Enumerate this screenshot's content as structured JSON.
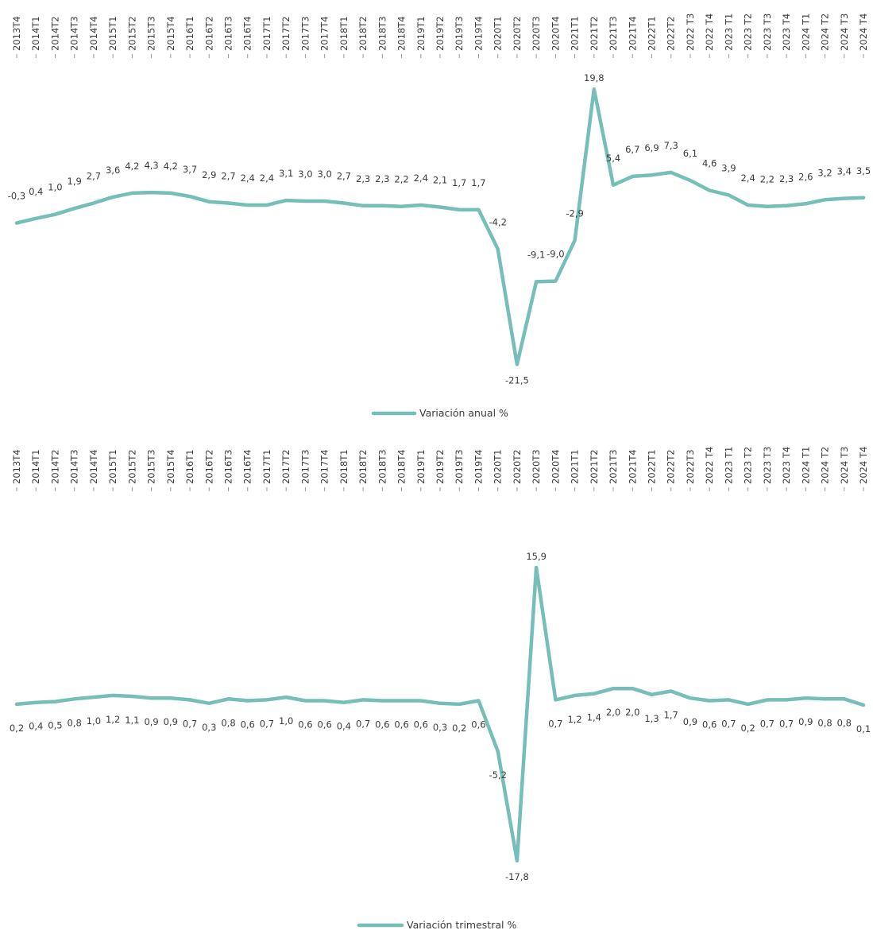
{
  "chart_data": [
    {
      "type": "line",
      "categories": [
        "2013T4",
        "2014T1",
        "2014T2",
        "2014T3",
        "2014T4",
        "2015T1",
        "2015T2",
        "2015T3",
        "2015T4",
        "2016T1",
        "2016T2",
        "2016T3",
        "2016T4",
        "2017T1",
        "2017T2",
        "2017T3",
        "2017T4",
        "2018T1",
        "2018T2",
        "2018T3",
        "2018T4",
        "2019T1",
        "2019T2",
        "2019T3",
        "2019T4",
        "2020T1",
        "2020T2",
        "2020T3",
        "2020T4",
        "2021T1",
        "2021T2",
        "2021T3",
        "2021T4",
        "2022T1",
        "2022T2",
        "2022 T3",
        "2022 T4",
        "2023 T1",
        "2023 T2",
        "2023 T3",
        "2023 T4",
        "2024 T1",
        "2024 T2",
        "2024 T3",
        "2024 T4"
      ],
      "series": [
        {
          "name": "Variación anual %",
          "values": [
            -0.3,
            0.4,
            1.0,
            1.9,
            2.7,
            3.6,
            4.2,
            4.3,
            4.2,
            3.7,
            2.9,
            2.7,
            2.4,
            2.4,
            3.1,
            3.0,
            3.0,
            2.7,
            2.3,
            2.3,
            2.2,
            2.4,
            2.1,
            1.7,
            1.7,
            -4.2,
            -21.5,
            -9.1,
            -9.0,
            -2.9,
            19.8,
            5.4,
            6.7,
            6.9,
            7.3,
            6.1,
            4.6,
            3.9,
            2.4,
            2.2,
            2.3,
            2.6,
            3.2,
            3.4,
            3.5
          ],
          "labels": [
            "-0,3",
            "0,4",
            "1,0",
            "1,9",
            "2,7",
            "3,6",
            "4,2",
            "4,3",
            "4,2",
            "3,7",
            "2,9",
            "2,7",
            "2,4",
            "2,4",
            "3,1",
            "3,0",
            "3,0",
            "2,7",
            "2,3",
            "2,3",
            "2,2",
            "2,4",
            "2,1",
            "1,7",
            "1,7",
            "-4,2",
            "-21,5",
            "-9,1",
            "-9,0",
            "-2,9",
            "19,8",
            "5,4",
            "6,7",
            "6,9",
            "7,3",
            "6,1",
            "4,6",
            "3,9",
            "2,4",
            "2,2",
            "2,3",
            "2,6",
            "3,2",
            "3,4",
            "3,5"
          ]
        }
      ],
      "ylim": [
        -23,
        21
      ],
      "color": "#76bfb8",
      "grid": false,
      "legend_position": "bottom"
    },
    {
      "type": "line",
      "categories": [
        "2013T4",
        "2014T1",
        "2014T2",
        "2014T3",
        "2014T4",
        "2015T1",
        "2015T2",
        "2015T3",
        "2015T4",
        "2016T1",
        "2016T2",
        "2016T3",
        "2016T4",
        "2017T1",
        "2017T2",
        "2017T3",
        "2017T4",
        "2018T1",
        "2018T2",
        "2018T3",
        "2018T4",
        "2019T1",
        "2019T2",
        "2019T3",
        "2019T4",
        "2020T1",
        "2020T2",
        "2020T3",
        "2020T4",
        "2021T1",
        "2021T2",
        "2021T3",
        "2021T4",
        "2022T1",
        "2022T2",
        "2022T3",
        "2022 T4",
        "2023 T1",
        "2023 T2",
        "2023 T3",
        "2023 T4",
        "2024 T1",
        "2024 T2",
        "2024 T3",
        "2024 T4"
      ],
      "series": [
        {
          "name": "Variación trimestral %",
          "values": [
            0.2,
            0.4,
            0.5,
            0.8,
            1.0,
            1.2,
            1.1,
            0.9,
            0.9,
            0.7,
            0.3,
            0.8,
            0.6,
            0.7,
            1.0,
            0.6,
            0.6,
            0.4,
            0.7,
            0.6,
            0.6,
            0.6,
            0.3,
            0.2,
            0.6,
            -5.2,
            -17.8,
            15.9,
            0.7,
            1.2,
            1.4,
            2.0,
            2.0,
            1.3,
            1.7,
            0.9,
            0.6,
            0.7,
            0.2,
            0.7,
            0.7,
            0.9,
            0.8,
            0.8,
            0.1
          ],
          "labels": [
            "0,2",
            "0,4",
            "0,5",
            "0,8",
            "1,0",
            "1,2",
            "1,1",
            "0,9",
            "0,9",
            "0,7",
            "0,3",
            "0,8",
            "0,6",
            "0,7",
            "1,0",
            "0,6",
            "0,6",
            "0,4",
            "0,7",
            "0,6",
            "0,6",
            "0,6",
            "0,3",
            "0,2",
            "0,6",
            "-5,2",
            "-17,8",
            "15,9",
            "0,7",
            "1,2",
            "1,4",
            "2,0",
            "2,0",
            "1,3",
            "1,7",
            "0,9",
            "0,6",
            "0,7",
            "0,2",
            "0,7",
            "0,7",
            "0,9",
            "0,8",
            "0,8",
            "0,1"
          ]
        }
      ],
      "ylim": [
        -19,
        17
      ],
      "color": "#76bfb8",
      "grid": false,
      "legend_position": "bottom"
    }
  ]
}
